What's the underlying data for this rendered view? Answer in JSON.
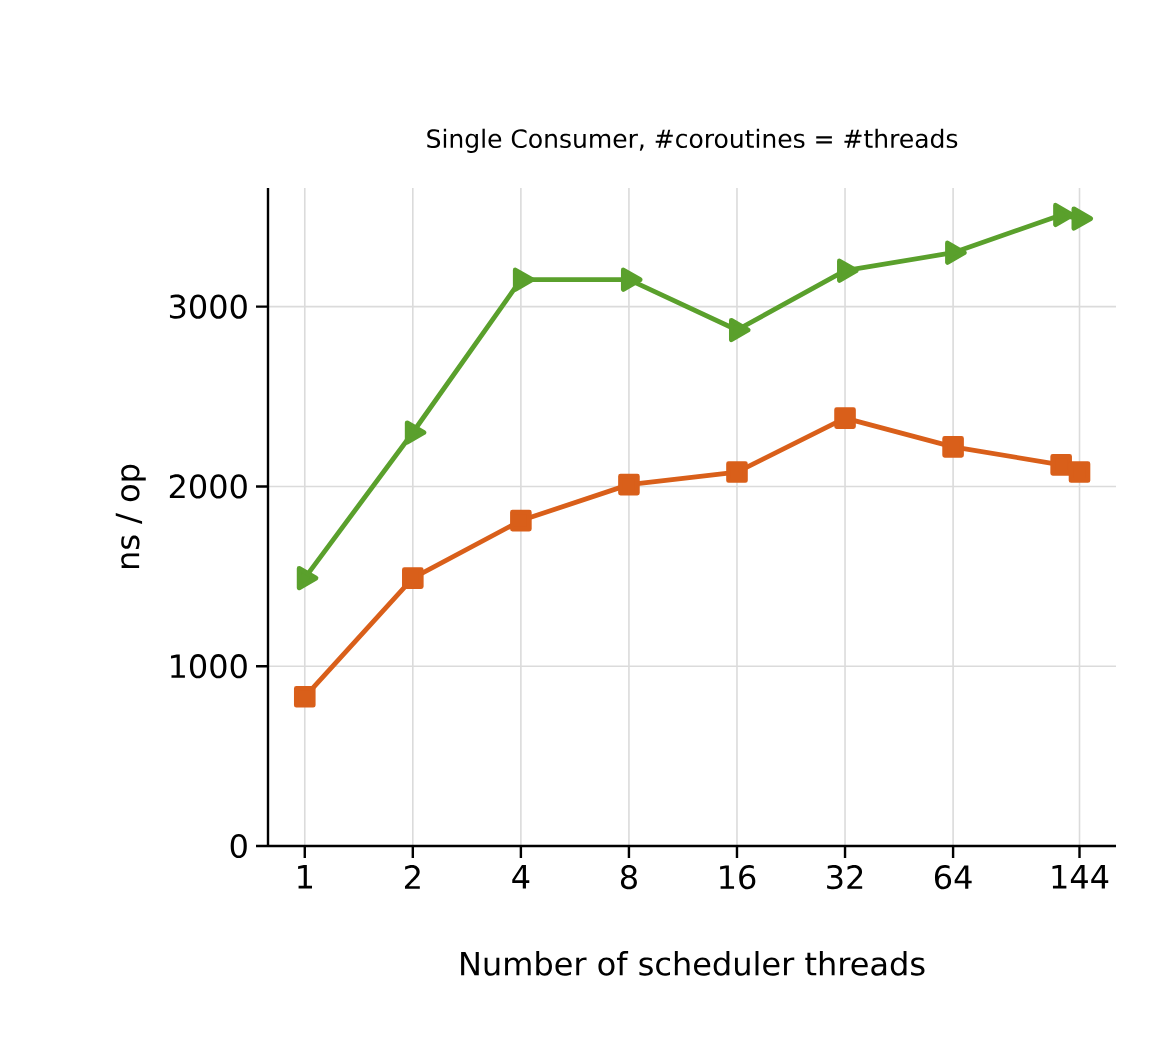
{
  "chart_data": {
    "type": "line",
    "title": "Single Consumer, #coroutines = #threads",
    "xlabel": "Number of scheduler threads",
    "ylabel": "ns / op",
    "log": "x",
    "grid": true,
    "xlim": [
      0.79,
      182
    ],
    "ylim": [
      0,
      3660
    ],
    "xticks": [
      1,
      2,
      4,
      8,
      16,
      32,
      64,
      144
    ],
    "yticks": [
      0,
      1000,
      2000,
      3000
    ],
    "series": [
      {
        "color": "#5aa02c",
        "marker": "triangle",
        "x": [
          1,
          2,
          4,
          8,
          16,
          32,
          64,
          128,
          144
        ],
        "values": [
          1490,
          2300,
          3150,
          3150,
          2870,
          3200,
          3300,
          3510,
          3490
        ]
      },
      {
        "color": "#d95f1a",
        "marker": "square",
        "x": [
          1,
          2,
          4,
          8,
          16,
          32,
          64,
          128,
          144
        ],
        "values": [
          830,
          1490,
          1810,
          2010,
          2080,
          2380,
          2220,
          2120,
          2080
        ]
      }
    ]
  }
}
